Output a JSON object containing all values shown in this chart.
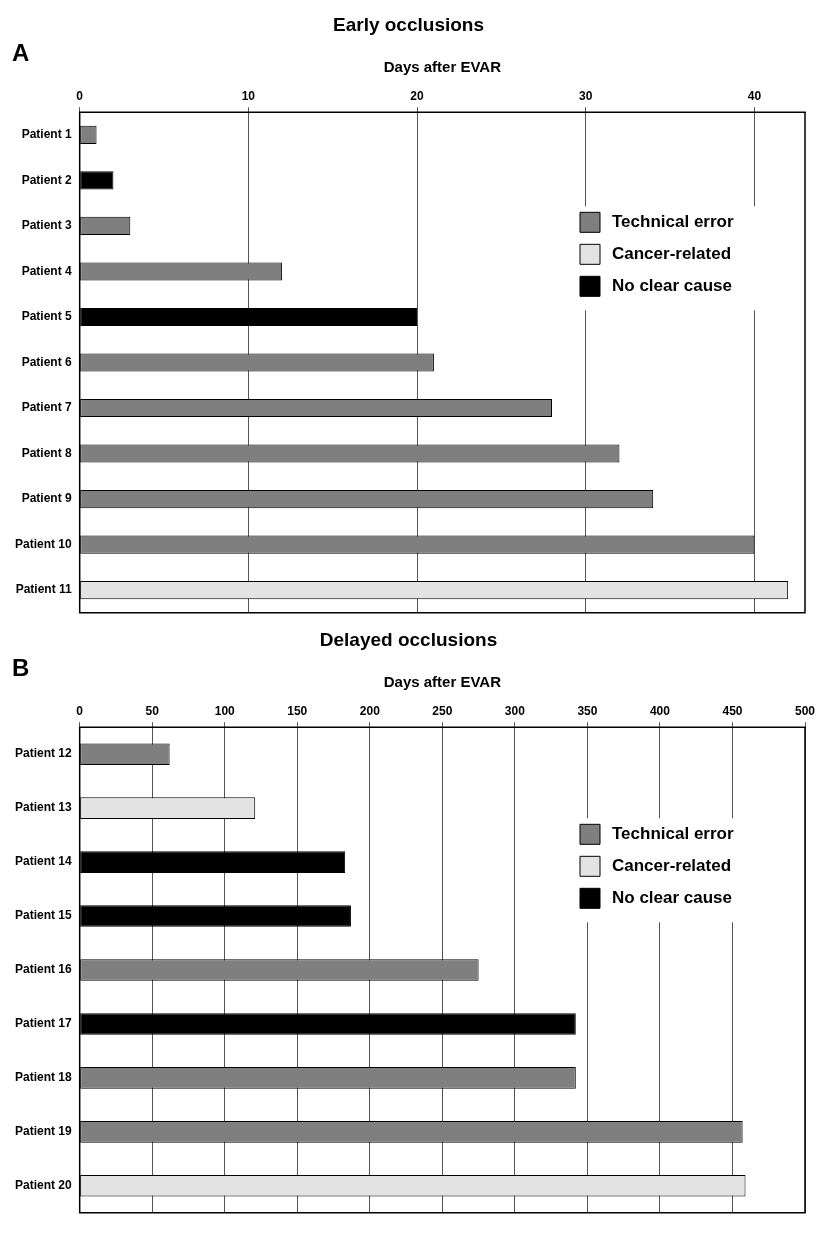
{
  "chart_data": [
    {
      "type": "bar",
      "orientation": "horizontal",
      "title": "Early occlusions",
      "xlabel": "Days after EVAR",
      "annotations": [
        "A"
      ],
      "categories": [
        "Patient 1",
        "Patient 2",
        "Patient 3",
        "Patient 4",
        "Patient 5",
        "Patient 6",
        "Patient 7",
        "Patient 8",
        "Patient 9",
        "Patient 10",
        "Patient 11"
      ],
      "series": [
        {
          "name": "Technical error",
          "color": "#7f7f7f",
          "values": [
            1,
            null,
            3,
            12,
            null,
            21,
            28,
            32,
            34,
            40,
            null
          ]
        },
        {
          "name": "Cancer-related",
          "color": "#e3e3e3",
          "values": [
            null,
            null,
            null,
            null,
            null,
            null,
            null,
            null,
            null,
            null,
            42
          ]
        },
        {
          "name": "No clear cause",
          "color": "#000000",
          "values": [
            null,
            2,
            null,
            null,
            20,
            null,
            null,
            null,
            null,
            null,
            null
          ]
        }
      ],
      "xlim": [
        0,
        43
      ],
      "xticks": [
        0,
        10,
        20,
        30,
        40
      ],
      "grid": "x",
      "legend": "right"
    },
    {
      "type": "bar",
      "orientation": "horizontal",
      "title": "Delayed occlusions",
      "xlabel": "Days after EVAR",
      "annotations": [
        "B"
      ],
      "categories": [
        "Patient 12",
        "Patient 13",
        "Patient 14",
        "Patient 15",
        "Patient 16",
        "Patient 17",
        "Patient 18",
        "Patient 19",
        "Patient 20"
      ],
      "series": [
        {
          "name": "Technical error",
          "color": "#7f7f7f",
          "values": [
            62,
            null,
            null,
            null,
            275,
            null,
            342,
            457,
            null
          ]
        },
        {
          "name": "Cancer-related",
          "color": "#e3e3e3",
          "values": [
            null,
            121,
            null,
            null,
            null,
            null,
            null,
            null,
            459
          ]
        },
        {
          "name": "No clear cause",
          "color": "#000000",
          "values": [
            null,
            null,
            183,
            187,
            null,
            342,
            null,
            null,
            null
          ]
        }
      ],
      "xlim": [
        0,
        500
      ],
      "xticks": [
        0,
        50,
        100,
        150,
        200,
        250,
        300,
        350,
        400,
        450,
        500
      ],
      "grid": "x",
      "legend": "right"
    }
  ]
}
